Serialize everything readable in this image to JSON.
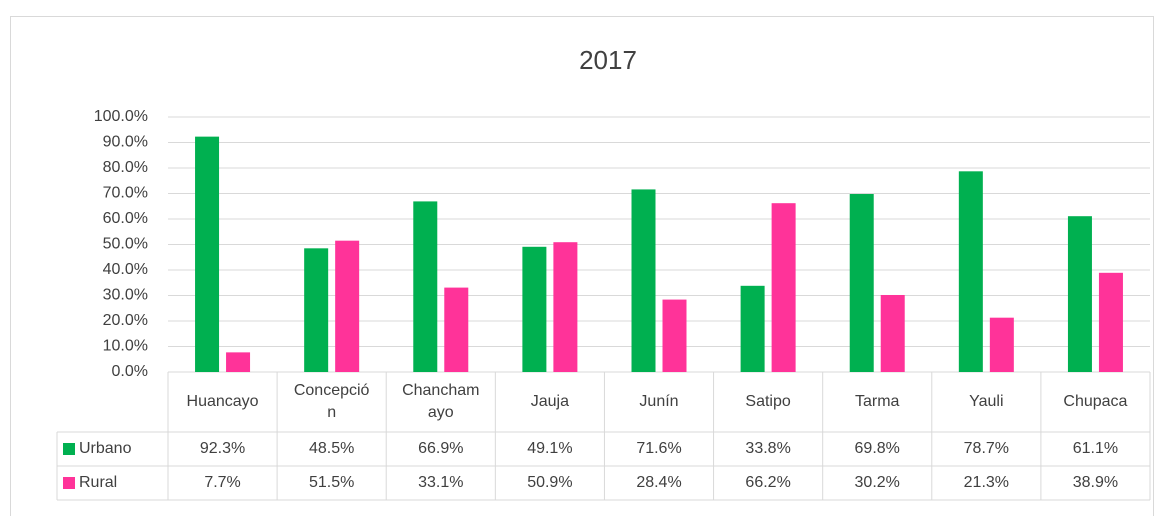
{
  "chart_data": {
    "type": "bar",
    "title": "2017",
    "categories": [
      "Huancayo",
      "Concepción",
      "Chanchamayo",
      "Jauja",
      "Junín",
      "Satipo",
      "Tarma",
      "Yauli",
      "Chupaca"
    ],
    "series": [
      {
        "name": "Urbano",
        "color": "#00b050",
        "values": [
          92.3,
          48.5,
          66.9,
          49.1,
          71.6,
          33.8,
          69.8,
          78.7,
          61.1
        ],
        "value_labels": [
          "92.3%",
          "48.5%",
          "66.9%",
          "49.1%",
          "71.6%",
          "33.8%",
          "69.8%",
          "78.7%",
          "61.1%"
        ]
      },
      {
        "name": "Rural",
        "color": "#ff3399",
        "values": [
          7.7,
          51.5,
          33.1,
          50.9,
          28.4,
          66.2,
          30.2,
          21.3,
          38.9
        ],
        "value_labels": [
          "7.7%",
          "51.5%",
          "33.1%",
          "50.9%",
          "28.4%",
          "66.2%",
          "30.2%",
          "21.3%",
          "38.9%"
        ]
      }
    ],
    "ylim": [
      0,
      100
    ],
    "yticks": [
      {
        "value": 0,
        "label": "0.0%"
      },
      {
        "value": 10,
        "label": "10.0%"
      },
      {
        "value": 20,
        "label": "20.0%"
      },
      {
        "value": 30,
        "label": "30.0%"
      },
      {
        "value": 40,
        "label": "40.0%"
      },
      {
        "value": 50,
        "label": "50.0%"
      },
      {
        "value": 60,
        "label": "60.0%"
      },
      {
        "value": 70,
        "label": "70.0%"
      },
      {
        "value": 80,
        "label": "80.0%"
      },
      {
        "value": 90,
        "label": "90.0%"
      },
      {
        "value": 100,
        "label": "100.0%"
      }
    ],
    "grid": true
  }
}
